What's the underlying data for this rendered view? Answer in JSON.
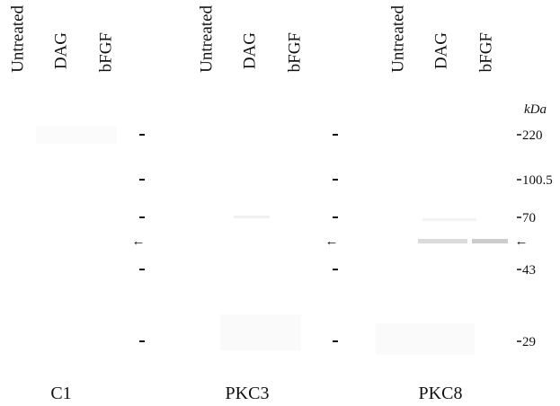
{
  "panels": [
    {
      "lanes": [
        "Untreated",
        "DAG",
        "bFGF"
      ],
      "label": "C1"
    },
    {
      "lanes": [
        "Untreated",
        "DAG",
        "bFGF"
      ],
      "label": "PKC3"
    },
    {
      "lanes": [
        "Untreated",
        "DAG",
        "bFGF"
      ],
      "label": "PKC8"
    }
  ],
  "markers": {
    "unit": "kDa",
    "labels": [
      "220",
      "100.5",
      "70",
      "43",
      "29"
    ]
  },
  "arrow": "←"
}
